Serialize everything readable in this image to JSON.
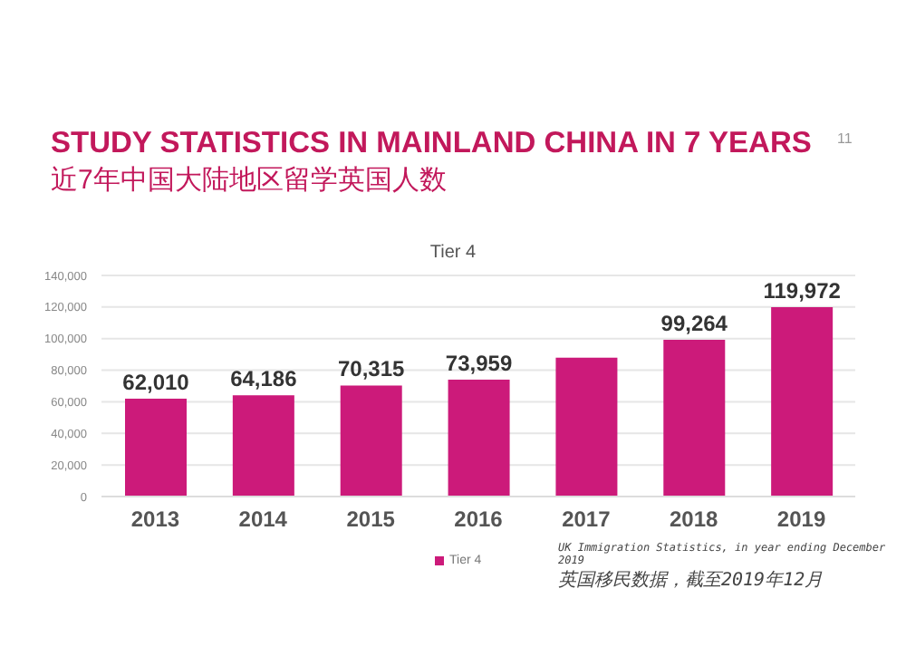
{
  "chart_data": {
    "type": "bar",
    "title": "STUDY STATISTICS IN MAINLAND CHINA IN 7 YEARS",
    "subtitle": "近7年中国大陆地区留学英国人数",
    "annotations": [
      "11",
      "Tier 4",
      "UK Immigration Statistics, in year ending December 2019",
      "英国移民数据，截至2019年12月"
    ],
    "categories": [
      "2013",
      "2014",
      "2015",
      "2016",
      "2017",
      "2018",
      "2019"
    ],
    "series": [
      {
        "name": "Tier 4",
        "color": "#cc1a7a",
        "values": [
          62010,
          64186,
          70315,
          73959,
          88000,
          99264,
          119972
        ],
        "value_labels": [
          "62,010",
          "64,186",
          "70,315",
          "73,959",
          null,
          "99,264",
          "119,972"
        ]
      }
    ],
    "ylim": [
      0,
      140000
    ],
    "yticks": [
      {
        "value": 0,
        "label": "0"
      },
      {
        "value": 20000,
        "label": "20,000"
      },
      {
        "value": 40000,
        "label": "40,000"
      },
      {
        "value": 60000,
        "label": "60,000"
      },
      {
        "value": 80000,
        "label": "80,000"
      },
      {
        "value": 100000,
        "label": "100,000"
      },
      {
        "value": 120000,
        "label": "120,000"
      },
      {
        "value": 140000,
        "label": "140,000"
      }
    ],
    "grid": "y",
    "legend": "bottom"
  }
}
